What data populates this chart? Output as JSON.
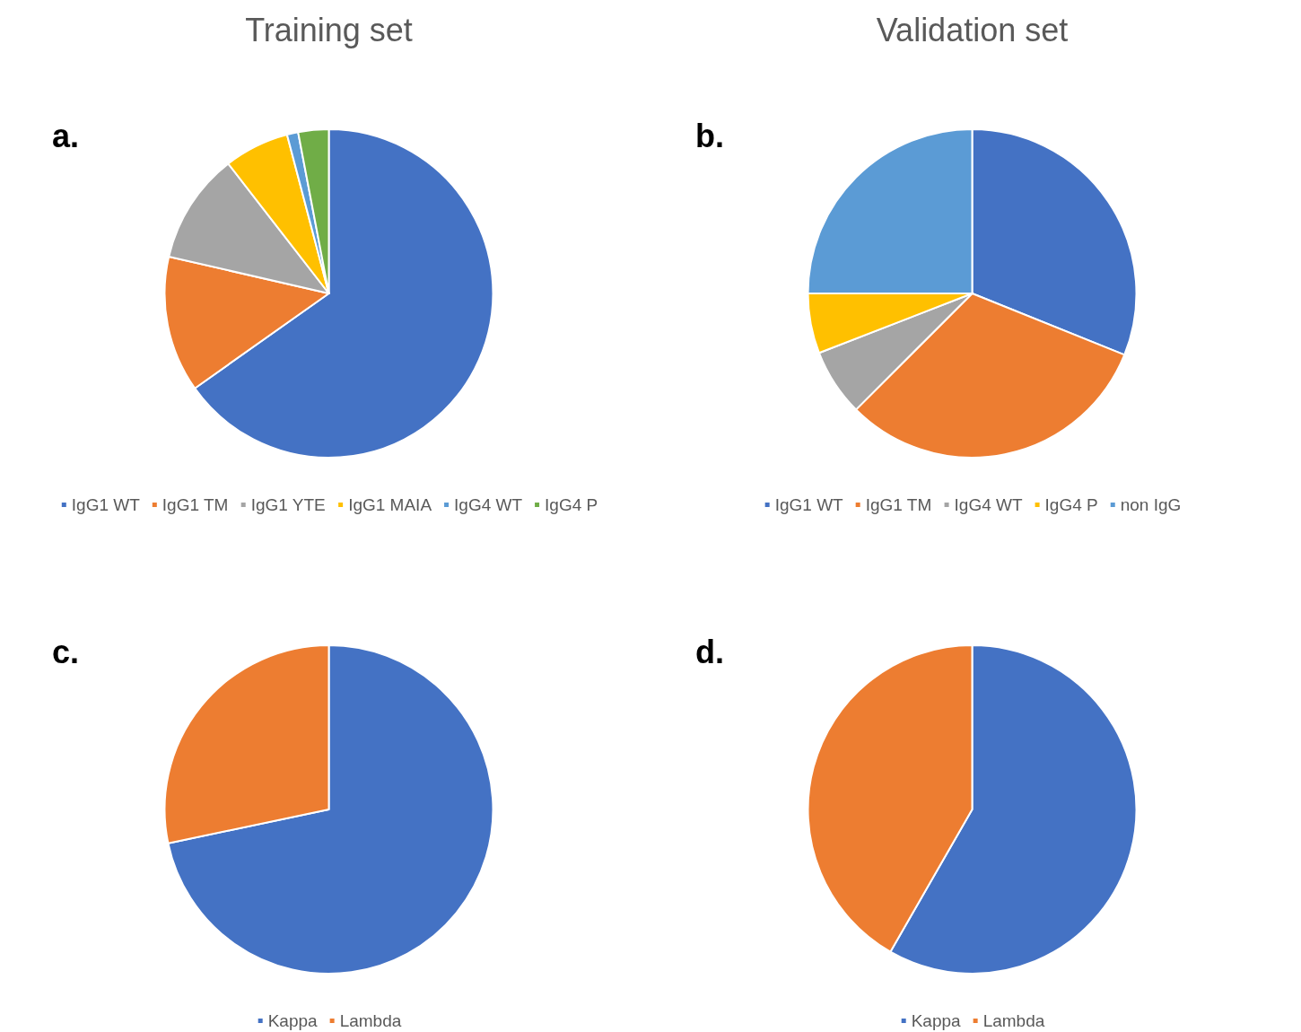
{
  "chart_data": [
    {
      "type": "pie",
      "title": "Training set",
      "annotations": [
        "a."
      ],
      "categories": [
        "IgG1 WT",
        "IgG1 TM",
        "IgG1 YTE",
        "IgG1 MAIA",
        "IgG4 WT",
        "IgG4 P"
      ],
      "values": [
        65.2,
        13.4,
        10.9,
        6.4,
        1.1,
        3.0
      ],
      "colors": [
        "#4472c4",
        "#ed7d31",
        "#a5a5a5",
        "#ffc000",
        "#5b9bd5",
        "#70ad47"
      ],
      "legend": "bottom"
    },
    {
      "type": "pie",
      "title": "Validation set",
      "annotations": [
        "b."
      ],
      "categories": [
        "IgG1 WT",
        "IgG1 TM",
        "IgG4 WT",
        "IgG4 P",
        "non IgG"
      ],
      "values": [
        31.1,
        31.4,
        6.6,
        5.9,
        25
      ],
      "colors": [
        "#4472c4",
        "#ed7d31",
        "#a5a5a5",
        "#ffc000",
        "#5b9bd5"
      ],
      "legend": "bottom"
    },
    {
      "type": "pie",
      "annotations": [
        "c."
      ],
      "categories": [
        "Kappa",
        "Lambda"
      ],
      "values": [
        71.7,
        28.3
      ],
      "colors": [
        "#4472c4",
        "#ed7d31"
      ],
      "legend": "bottom"
    },
    {
      "type": "pie",
      "annotations": [
        "d."
      ],
      "categories": [
        "Kappa",
        "Lambda"
      ],
      "values": [
        58.3,
        41.7
      ],
      "colors": [
        "#4472c4",
        "#ed7d31"
      ],
      "legend": "bottom"
    }
  ]
}
